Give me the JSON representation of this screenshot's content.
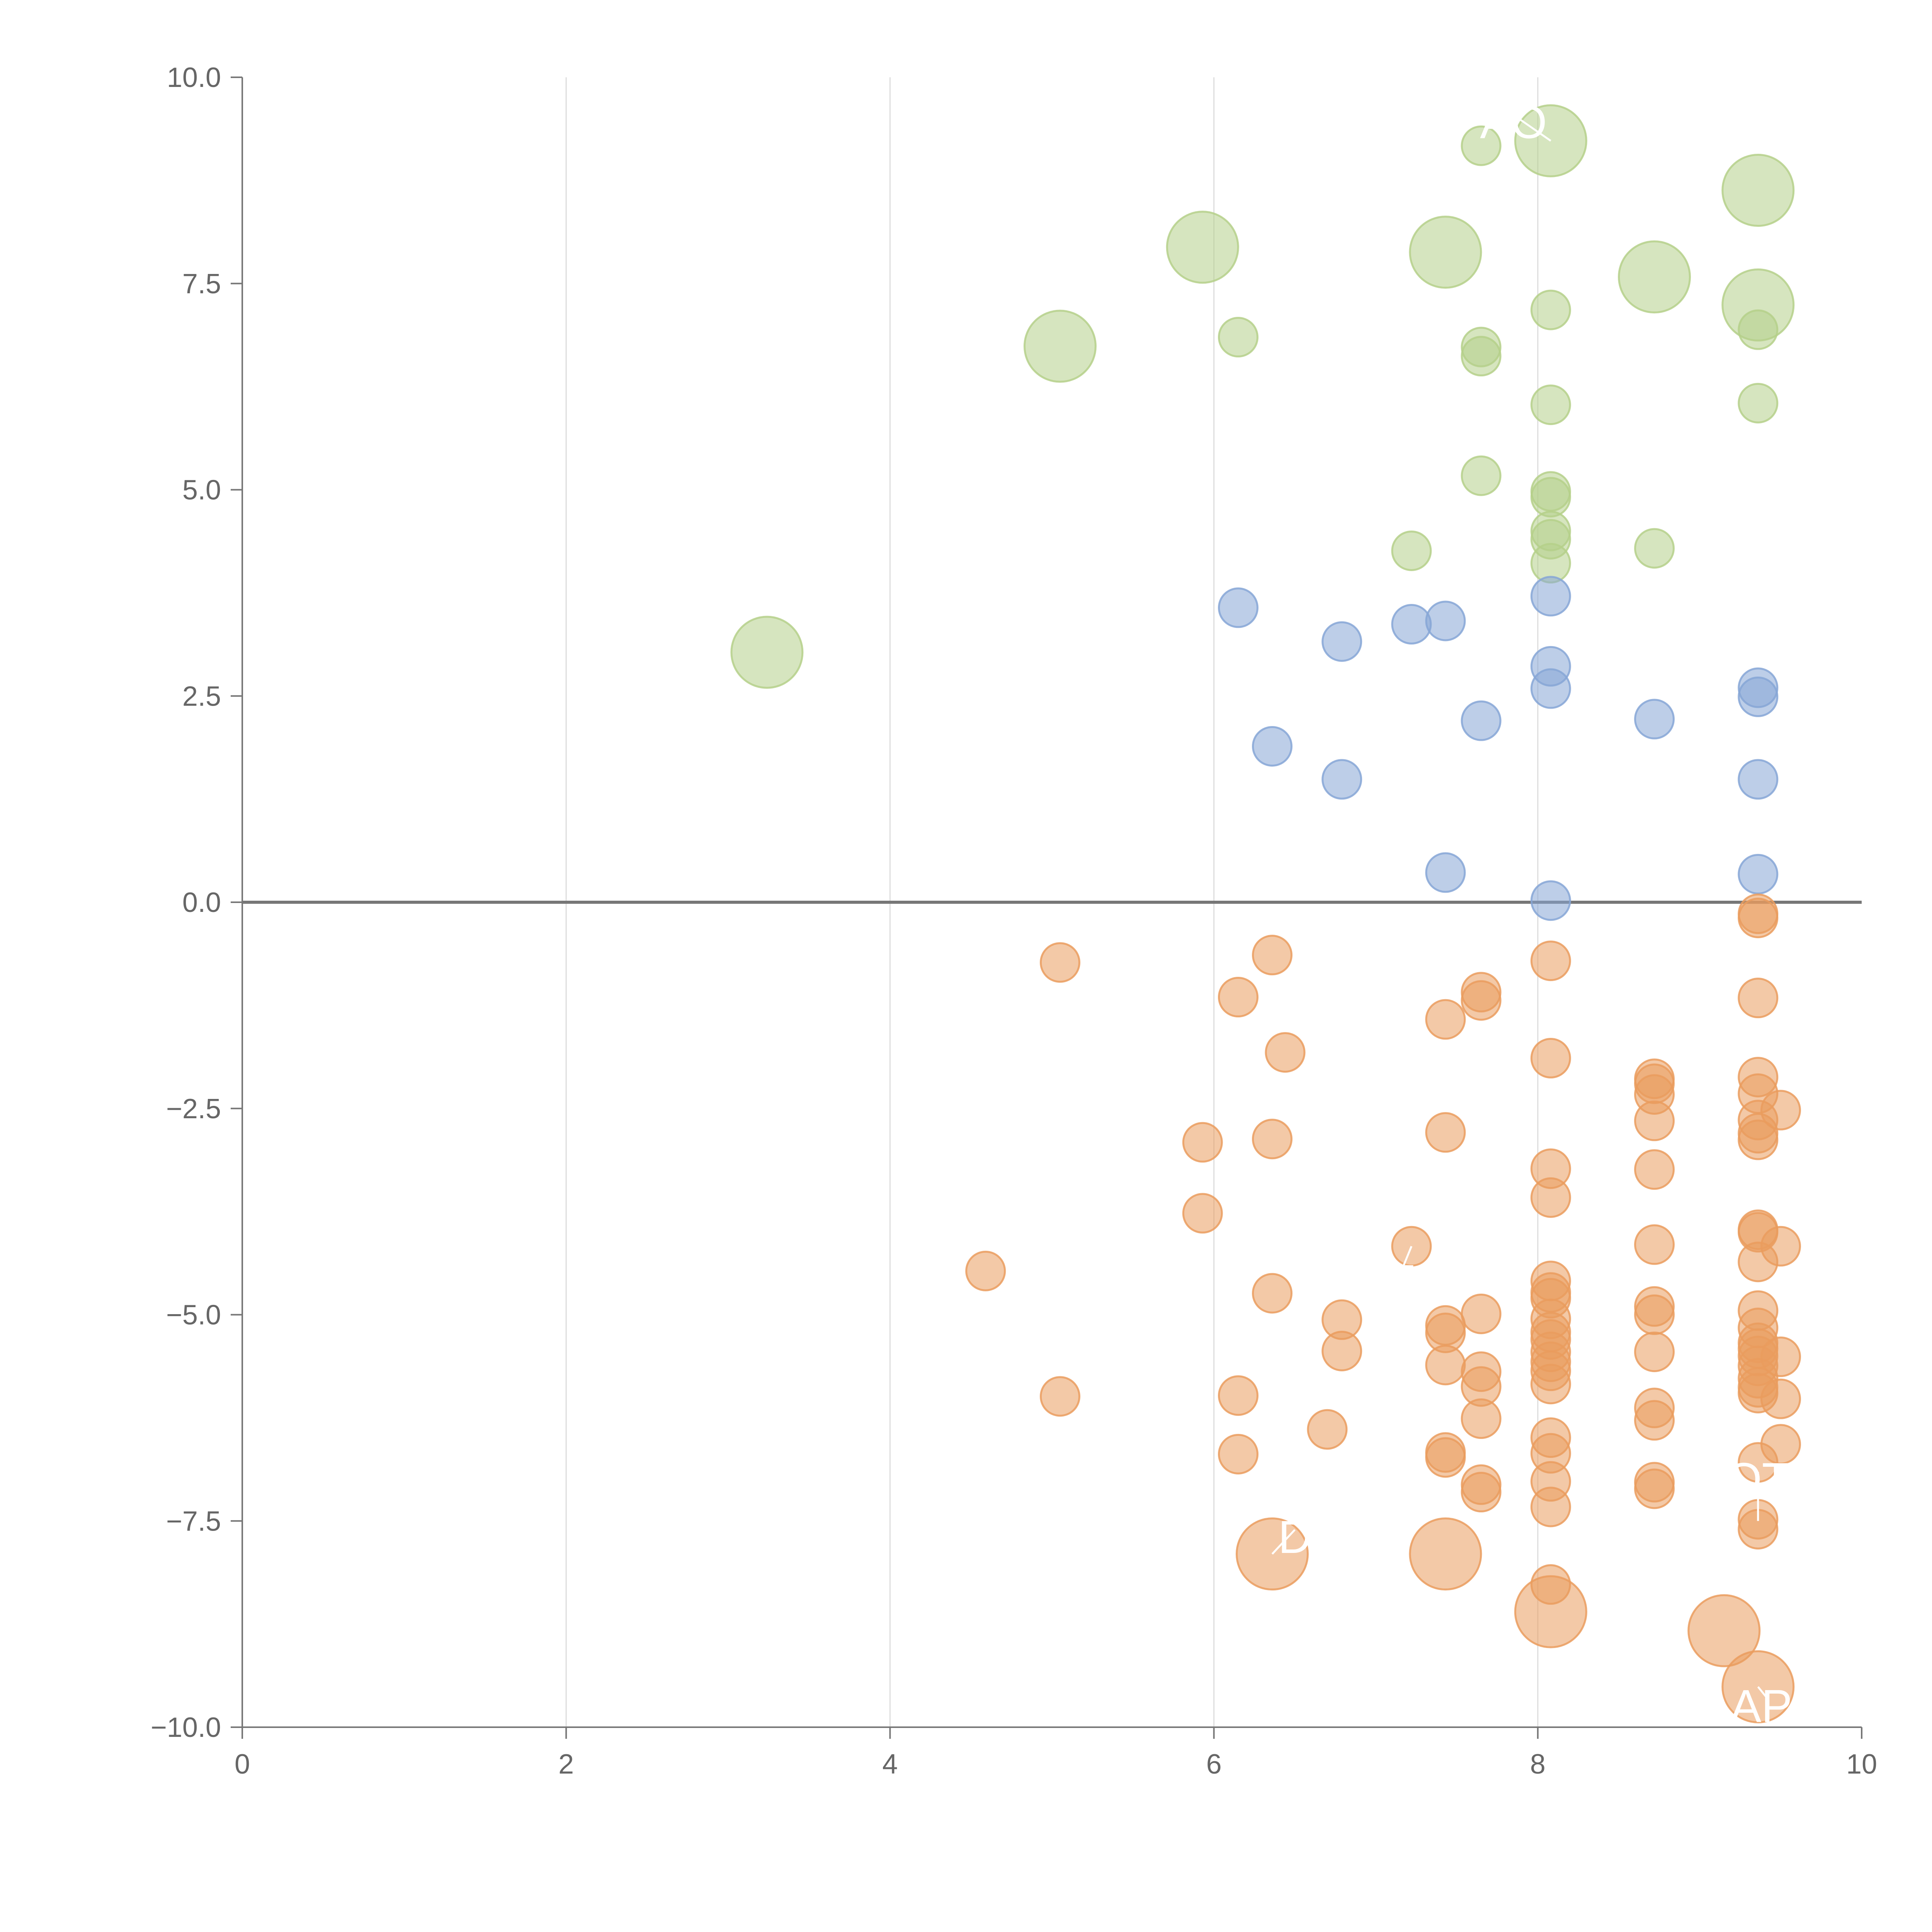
{
  "chart_data": {
    "type": "scatter",
    "title": "",
    "xlabel": "",
    "ylabel": "",
    "xlim": [
      0,
      10
    ],
    "ylim": [
      -10,
      10
    ],
    "grid": "vertical",
    "legend": "none",
    "x_ticks": [
      "0",
      "2",
      "4",
      "6",
      "8",
      "10"
    ],
    "y_ticks": [
      "10.0",
      "7.5",
      "5.0",
      "2.5",
      "0.0",
      "−2.5",
      "−5.0",
      "−7.5",
      "−10.0"
    ],
    "colors": {
      "green": "#b5d08a",
      "blue": "#86a6d6",
      "orange": "#ea9c5e",
      "axis": "#777777",
      "grid": "#dddddd"
    },
    "series": [
      {
        "name": "green",
        "color": "#b5d08a",
        "points": [
          {
            "x": 3.24,
            "y": 3.03,
            "s": "L"
          },
          {
            "x": 5.05,
            "y": 6.74,
            "s": "L"
          },
          {
            "x": 5.93,
            "y": 7.94,
            "s": "L"
          },
          {
            "x": 6.15,
            "y": 6.85
          },
          {
            "x": 7.22,
            "y": 4.26
          },
          {
            "x": 7.43,
            "y": 7.88,
            "s": "L"
          },
          {
            "x": 7.65,
            "y": 9.17
          },
          {
            "x": 7.65,
            "y": 6.73
          },
          {
            "x": 7.65,
            "y": 6.62
          },
          {
            "x": 7.65,
            "y": 5.17
          },
          {
            "x": 8.08,
            "y": 9.23,
            "s": "L"
          },
          {
            "x": 8.08,
            "y": 7.18
          },
          {
            "x": 8.08,
            "y": 6.03
          },
          {
            "x": 8.08,
            "y": 4.98
          },
          {
            "x": 8.08,
            "y": 4.91
          },
          {
            "x": 8.08,
            "y": 4.5
          },
          {
            "x": 8.08,
            "y": 4.4
          },
          {
            "x": 8.08,
            "y": 4.11
          },
          {
            "x": 8.72,
            "y": 7.58,
            "s": "L"
          },
          {
            "x": 8.72,
            "y": 4.29
          },
          {
            "x": 9.36,
            "y": 8.63,
            "s": "L"
          },
          {
            "x": 9.36,
            "y": 7.24,
            "s": "L"
          },
          {
            "x": 9.36,
            "y": 6.94
          },
          {
            "x": 9.36,
            "y": 6.05
          }
        ]
      },
      {
        "name": "blue",
        "color": "#86a6d6",
        "points": [
          {
            "x": 6.15,
            "y": 3.57
          },
          {
            "x": 6.36,
            "y": 1.89
          },
          {
            "x": 6.79,
            "y": 3.16
          },
          {
            "x": 6.79,
            "y": 1.49
          },
          {
            "x": 7.22,
            "y": 3.37
          },
          {
            "x": 7.43,
            "y": 3.41
          },
          {
            "x": 7.43,
            "y": 0.36
          },
          {
            "x": 7.65,
            "y": 2.2
          },
          {
            "x": 8.08,
            "y": 3.71
          },
          {
            "x": 8.08,
            "y": 2.86
          },
          {
            "x": 8.08,
            "y": 2.59
          },
          {
            "x": 8.08,
            "y": 0.02
          },
          {
            "x": 8.72,
            "y": 2.22
          },
          {
            "x": 9.36,
            "y": 2.6
          },
          {
            "x": 9.36,
            "y": 2.49
          },
          {
            "x": 9.36,
            "y": 1.49
          },
          {
            "x": 9.36,
            "y": 0.34
          }
        ]
      },
      {
        "name": "orange",
        "color": "#ea9c5e",
        "points": [
          {
            "x": 4.59,
            "y": -4.47
          },
          {
            "x": 5.05,
            "y": -0.73
          },
          {
            "x": 5.05,
            "y": -5.99
          },
          {
            "x": 5.93,
            "y": -2.91
          },
          {
            "x": 5.93,
            "y": -3.77
          },
          {
            "x": 6.15,
            "y": -1.15
          },
          {
            "x": 6.15,
            "y": -5.98
          },
          {
            "x": 6.15,
            "y": -6.69
          },
          {
            "x": 6.36,
            "y": -0.64
          },
          {
            "x": 6.36,
            "y": -2.87
          },
          {
            "x": 6.36,
            "y": -4.74
          },
          {
            "x": 6.36,
            "y": -7.9,
            "s": "L"
          },
          {
            "x": 6.44,
            "y": -1.82
          },
          {
            "x": 6.7,
            "y": -6.39
          },
          {
            "x": 6.79,
            "y": -5.06
          },
          {
            "x": 6.79,
            "y": -5.44
          },
          {
            "x": 7.22,
            "y": -4.17
          },
          {
            "x": 7.43,
            "y": -1.42
          },
          {
            "x": 7.43,
            "y": -2.79
          },
          {
            "x": 7.43,
            "y": -5.13
          },
          {
            "x": 7.43,
            "y": -5.22
          },
          {
            "x": 7.43,
            "y": -5.61
          },
          {
            "x": 7.43,
            "y": -6.67
          },
          {
            "x": 7.43,
            "y": -6.73
          },
          {
            "x": 7.43,
            "y": -7.9,
            "s": "L"
          },
          {
            "x": 7.65,
            "y": -1.09
          },
          {
            "x": 7.65,
            "y": -1.19
          },
          {
            "x": 7.65,
            "y": -4.99
          },
          {
            "x": 7.65,
            "y": -5.69
          },
          {
            "x": 7.65,
            "y": -5.87
          },
          {
            "x": 7.65,
            "y": -6.26
          },
          {
            "x": 7.65,
            "y": -7.06
          },
          {
            "x": 7.65,
            "y": -7.15
          },
          {
            "x": 8.08,
            "y": -0.71
          },
          {
            "x": 8.08,
            "y": -1.89
          },
          {
            "x": 8.08,
            "y": -3.23
          },
          {
            "x": 8.08,
            "y": -3.58
          },
          {
            "x": 8.08,
            "y": -4.59
          },
          {
            "x": 8.08,
            "y": -4.73
          },
          {
            "x": 8.08,
            "y": -4.8
          },
          {
            "x": 8.08,
            "y": -5.05
          },
          {
            "x": 8.08,
            "y": -5.21
          },
          {
            "x": 8.08,
            "y": -5.3
          },
          {
            "x": 8.08,
            "y": -5.45
          },
          {
            "x": 8.08,
            "y": -5.57
          },
          {
            "x": 8.08,
            "y": -5.68
          },
          {
            "x": 8.08,
            "y": -5.84
          },
          {
            "x": 8.08,
            "y": -6.49
          },
          {
            "x": 8.08,
            "y": -6.68
          },
          {
            "x": 8.08,
            "y": -7.02
          },
          {
            "x": 8.08,
            "y": -7.33
          },
          {
            "x": 8.08,
            "y": -8.27
          },
          {
            "x": 8.08,
            "y": -8.6,
            "s": "L"
          },
          {
            "x": 8.72,
            "y": -2.14
          },
          {
            "x": 8.72,
            "y": -2.2
          },
          {
            "x": 8.72,
            "y": -2.33
          },
          {
            "x": 8.72,
            "y": -2.65
          },
          {
            "x": 8.72,
            "y": -3.24
          },
          {
            "x": 8.72,
            "y": -4.15
          },
          {
            "x": 8.72,
            "y": -4.9
          },
          {
            "x": 8.72,
            "y": -5.0
          },
          {
            "x": 8.72,
            "y": -5.45
          },
          {
            "x": 8.72,
            "y": -6.13
          },
          {
            "x": 8.72,
            "y": -6.28
          },
          {
            "x": 8.72,
            "y": -7.03
          },
          {
            "x": 8.72,
            "y": -7.11
          },
          {
            "x": 9.15,
            "y": -8.83,
            "s": "L"
          },
          {
            "x": 9.36,
            "y": -0.14
          },
          {
            "x": 9.36,
            "y": -0.19
          },
          {
            "x": 9.36,
            "y": -1.16
          },
          {
            "x": 9.36,
            "y": -2.12
          },
          {
            "x": 9.36,
            "y": -2.32
          },
          {
            "x": 9.36,
            "y": -2.64
          },
          {
            "x": 9.36,
            "y": -2.8
          },
          {
            "x": 9.36,
            "y": -2.88
          },
          {
            "x": 9.36,
            "y": -3.97
          },
          {
            "x": 9.36,
            "y": -4.0
          },
          {
            "x": 9.36,
            "y": -4.36
          },
          {
            "x": 9.36,
            "y": -4.95
          },
          {
            "x": 9.36,
            "y": -5.16
          },
          {
            "x": 9.36,
            "y": -5.34
          },
          {
            "x": 9.36,
            "y": -5.41
          },
          {
            "x": 9.36,
            "y": -5.5
          },
          {
            "x": 9.36,
            "y": -5.62
          },
          {
            "x": 9.36,
            "y": -5.77
          },
          {
            "x": 9.36,
            "y": -5.88
          },
          {
            "x": 9.36,
            "y": -5.95
          },
          {
            "x": 9.36,
            "y": -6.79
          },
          {
            "x": 9.36,
            "y": -7.48
          },
          {
            "x": 9.36,
            "y": -7.6
          },
          {
            "x": 9.36,
            "y": -9.51,
            "s": "L"
          },
          {
            "x": 9.5,
            "y": -2.52
          },
          {
            "x": 9.5,
            "y": -4.17
          },
          {
            "x": 9.5,
            "y": -5.51
          },
          {
            "x": 9.5,
            "y": -6.02
          },
          {
            "x": 9.5,
            "y": -6.57
          }
        ]
      }
    ],
    "annotations": [
      {
        "text": "AO",
        "x": 8.08,
        "y": 9.23,
        "tx": 7.85,
        "ty": 9.45
      },
      {
        "text": "OT",
        "x": 9.36,
        "y": -7.5,
        "tx": 9.36,
        "ty": -7.0
      },
      {
        "text": "API",
        "x": 9.36,
        "y": -9.51,
        "tx": 9.42,
        "ty": -9.75
      },
      {
        "text": "T",
        "x": 7.22,
        "y": -4.17,
        "tx": 7.15,
        "ty": -4.6
      },
      {
        "text": "D",
        "x": 6.36,
        "y": -7.9,
        "tx": 6.5,
        "ty": -7.7
      }
    ]
  }
}
